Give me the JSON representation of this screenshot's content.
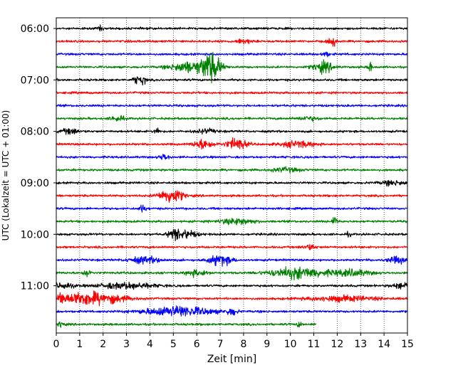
{
  "chart_data": {
    "type": "line",
    "title": "",
    "xlabel": "Zeit  [min]",
    "ylabel": "UTC (Lokalzeit = UTC + 01:00)",
    "xlim": [
      0,
      15
    ],
    "x_ticks": [
      0,
      1,
      2,
      3,
      4,
      5,
      6,
      7,
      8,
      9,
      10,
      11,
      12,
      13,
      14,
      15
    ],
    "x_tick_labels": [
      "0",
      "1",
      "2",
      "3",
      "4",
      "5",
      "6",
      "7",
      "8",
      "9",
      "10",
      "11",
      "12",
      "13",
      "14",
      "15"
    ],
    "y_tick_labels": [
      {
        "label": "06:00",
        "row": 0
      },
      {
        "label": "07:00",
        "row": 4
      },
      {
        "label": "08:00",
        "row": 8
      },
      {
        "label": "09:00",
        "row": 12
      },
      {
        "label": "10:00",
        "row": 16
      },
      {
        "label": "11:00",
        "row": 20
      }
    ],
    "grid": "vertical dotted",
    "trace_minutes": 15,
    "trace_colors": [
      "#000000",
      "#ff0000",
      "#0000ff",
      "#008000"
    ],
    "traces": [
      {
        "start": "06:00",
        "color": "#000000",
        "end_min": 15,
        "events": [
          {
            "t": 1.9,
            "a": 9,
            "w": 0.05
          }
        ]
      },
      {
        "start": "06:15",
        "color": "#ff0000",
        "end_min": 15,
        "events": [
          {
            "t": 8.0,
            "a": 5,
            "w": 0.2
          },
          {
            "t": 11.8,
            "a": 9,
            "w": 0.12
          }
        ]
      },
      {
        "start": "06:30",
        "color": "#0000ff",
        "end_min": 15,
        "events": [
          {
            "t": 11.5,
            "a": 5,
            "w": 0.1
          }
        ]
      },
      {
        "start": "06:45",
        "color": "#008000",
        "end_min": 15,
        "events": [
          {
            "t": 5.6,
            "a": 10,
            "w": 0.5
          },
          {
            "t": 6.6,
            "a": 28,
            "w": 0.3
          },
          {
            "t": 11.4,
            "a": 10,
            "w": 0.3
          },
          {
            "t": 13.4,
            "a": 12,
            "w": 0.05
          }
        ]
      },
      {
        "start": "07:00",
        "color": "#000000",
        "end_min": 15,
        "events": [
          {
            "t": 3.4,
            "a": 9,
            "w": 0.08
          },
          {
            "t": 3.7,
            "a": 9,
            "w": 0.08
          }
        ]
      },
      {
        "start": "07:15",
        "color": "#ff0000",
        "end_min": 15,
        "events": []
      },
      {
        "start": "07:30",
        "color": "#0000ff",
        "end_min": 15,
        "events": []
      },
      {
        "start": "07:45",
        "color": "#008000",
        "end_min": 15,
        "events": [
          {
            "t": 2.6,
            "a": 5,
            "w": 0.2
          },
          {
            "t": 10.8,
            "a": 4,
            "w": 0.3
          }
        ]
      },
      {
        "start": "08:00",
        "color": "#000000",
        "end_min": 15,
        "events": [
          {
            "t": 0.6,
            "a": 5,
            "w": 0.3
          },
          {
            "t": 4.3,
            "a": 11,
            "w": 0.06
          },
          {
            "t": 6.4,
            "a": 4,
            "w": 0.3
          }
        ]
      },
      {
        "start": "08:15",
        "color": "#ff0000",
        "end_min": 15,
        "events": [
          {
            "t": 6.3,
            "a": 9,
            "w": 0.3
          },
          {
            "t": 7.7,
            "a": 11,
            "w": 0.3
          },
          {
            "t": 10.3,
            "a": 6,
            "w": 0.5
          }
        ]
      },
      {
        "start": "08:30",
        "color": "#0000ff",
        "end_min": 15,
        "events": [
          {
            "t": 4.6,
            "a": 6,
            "w": 0.15
          }
        ]
      },
      {
        "start": "08:45",
        "color": "#008000",
        "end_min": 15,
        "events": [
          {
            "t": 9.8,
            "a": 4,
            "w": 0.4
          }
        ]
      },
      {
        "start": "09:00",
        "color": "#000000",
        "end_min": 15,
        "events": [
          {
            "t": 14.4,
            "a": 4,
            "w": 0.4
          }
        ]
      },
      {
        "start": "09:15",
        "color": "#ff0000",
        "end_min": 15,
        "events": [
          {
            "t": 4.9,
            "a": 14,
            "w": 0.35
          }
        ]
      },
      {
        "start": "09:30",
        "color": "#0000ff",
        "end_min": 15,
        "events": [
          {
            "t": 3.7,
            "a": 6,
            "w": 0.12
          }
        ]
      },
      {
        "start": "09:45",
        "color": "#008000",
        "end_min": 15,
        "events": [
          {
            "t": 7.7,
            "a": 6,
            "w": 0.5
          },
          {
            "t": 11.9,
            "a": 16,
            "w": 0.06
          }
        ]
      },
      {
        "start": "10:00",
        "color": "#000000",
        "end_min": 15,
        "events": [
          {
            "t": 5.0,
            "a": 8,
            "w": 0.15
          },
          {
            "t": 5.5,
            "a": 8,
            "w": 0.35
          },
          {
            "t": 12.5,
            "a": 5,
            "w": 0.05
          }
        ]
      },
      {
        "start": "10:15",
        "color": "#ff0000",
        "end_min": 15,
        "events": [
          {
            "t": 10.8,
            "a": 5,
            "w": 0.2
          }
        ]
      },
      {
        "start": "10:30",
        "color": "#0000ff",
        "end_min": 15,
        "events": [
          {
            "t": 3.8,
            "a": 6,
            "w": 0.5
          },
          {
            "t": 7.0,
            "a": 10,
            "w": 0.35
          },
          {
            "t": 14.6,
            "a": 6,
            "w": 0.3
          }
        ]
      },
      {
        "start": "10:45",
        "color": "#008000",
        "end_min": 15,
        "events": [
          {
            "t": 1.3,
            "a": 9,
            "w": 0.1
          },
          {
            "t": 6.0,
            "a": 6,
            "w": 0.3
          },
          {
            "t": 10.3,
            "a": 11,
            "w": 0.8
          },
          {
            "t": 12.6,
            "a": 6,
            "w": 0.6
          }
        ]
      },
      {
        "start": "11:00",
        "color": "#000000",
        "end_min": 15,
        "events": [
          {
            "t": 0.3,
            "a": 6,
            "w": 0.3
          },
          {
            "t": 3.0,
            "a": 6,
            "w": 0.8
          },
          {
            "t": 14.8,
            "a": 6,
            "w": 0.3
          }
        ]
      },
      {
        "start": "11:15",
        "color": "#ff0000",
        "end_min": 15,
        "events": [
          {
            "t": 0.2,
            "a": 22,
            "w": 0.06
          },
          {
            "t": 1.1,
            "a": 12,
            "w": 0.6
          },
          {
            "t": 2.3,
            "a": 7,
            "w": 0.6
          },
          {
            "t": 12.2,
            "a": 5,
            "w": 1.0
          }
        ]
      },
      {
        "start": "11:30",
        "color": "#0000ff",
        "end_min": 15,
        "events": [
          {
            "t": 5.2,
            "a": 10,
            "w": 1.0
          },
          {
            "t": 7.5,
            "a": 7,
            "w": 0.15
          }
        ]
      },
      {
        "start": "11:45",
        "color": "#008000",
        "end_min": 11.1,
        "events": [
          {
            "t": 0.2,
            "a": 7,
            "w": 0.08
          },
          {
            "t": 10.4,
            "a": 5,
            "w": 0.08
          }
        ]
      }
    ]
  }
}
